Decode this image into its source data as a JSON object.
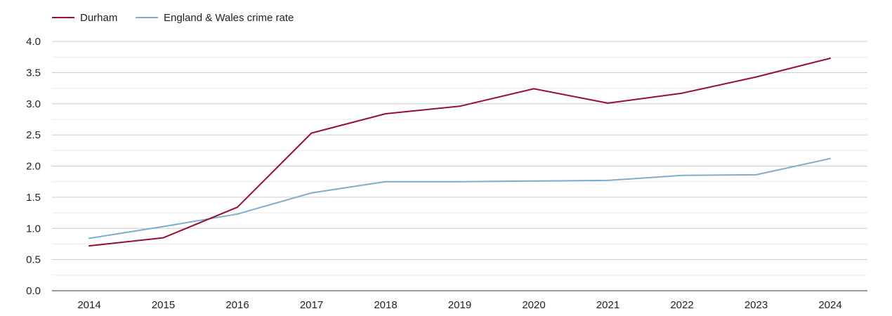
{
  "chart_data": {
    "type": "line",
    "title": "",
    "xlabel": "",
    "ylabel": "",
    "x": [
      "2014",
      "2015",
      "2016",
      "2017",
      "2018",
      "2019",
      "2020",
      "2021",
      "2022",
      "2023",
      "2024"
    ],
    "ylim": [
      0,
      4
    ],
    "yticks": [
      "0.0",
      "0.5",
      "1.0",
      "1.5",
      "2.0",
      "2.5",
      "3.0",
      "3.5",
      "4.0"
    ],
    "legend_position": "top-left",
    "grid": true,
    "series": [
      {
        "name": "Durham",
        "color": "#9b0d2c",
        "values": [
          0.72,
          0.85,
          1.34,
          2.53,
          2.84,
          2.96,
          3.24,
          3.01,
          3.17,
          3.43,
          3.73
        ]
      },
      {
        "name": "England & Wales crime rate",
        "color": "#7aaed0",
        "values": [
          0.84,
          1.03,
          1.23,
          1.57,
          1.75,
          1.75,
          1.76,
          1.77,
          1.85,
          1.86,
          2.12
        ]
      }
    ]
  }
}
